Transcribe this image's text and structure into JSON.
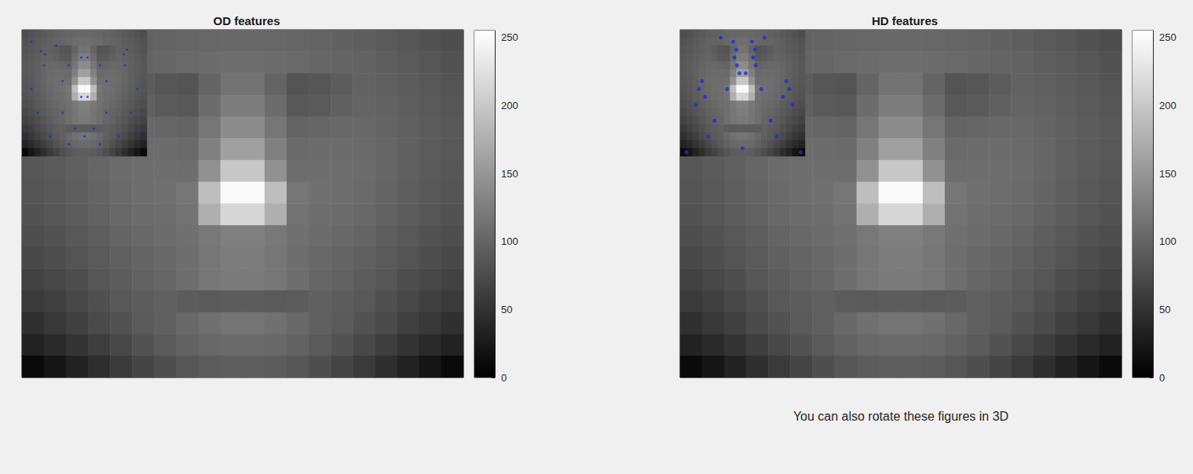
{
  "chart_data": [
    {
      "type": "heatmap",
      "title": "OD features",
      "tick_labels": false,
      "cells": [
        [
          78,
          82,
          86,
          90,
          94,
          97,
          99,
          101,
          103,
          104,
          104,
          103,
          101,
          99,
          97,
          94,
          90,
          86,
          82,
          78
        ],
        [
          82,
          86,
          90,
          94,
          98,
          100,
          102,
          105,
          108,
          110,
          110,
          108,
          105,
          102,
          100,
          98,
          94,
          90,
          86,
          82
        ],
        [
          84,
          88,
          92,
          96,
          98,
          92,
          86,
          84,
          100,
          115,
          115,
          100,
          84,
          86,
          92,
          98,
          96,
          92,
          88,
          84
        ],
        [
          86,
          90,
          94,
          98,
          100,
          96,
          90,
          88,
          108,
          125,
          125,
          108,
          88,
          90,
          96,
          100,
          98,
          94,
          90,
          86
        ],
        [
          88,
          92,
          96,
          100,
          104,
          104,
          102,
          100,
          118,
          140,
          140,
          118,
          100,
          102,
          104,
          104,
          100,
          96,
          92,
          88
        ],
        [
          88,
          92,
          96,
          102,
          106,
          108,
          108,
          106,
          128,
          160,
          160,
          128,
          106,
          108,
          108,
          106,
          102,
          96,
          92,
          88
        ],
        [
          86,
          90,
          96,
          102,
          108,
          110,
          110,
          110,
          145,
          200,
          200,
          145,
          110,
          110,
          110,
          108,
          102,
          96,
          90,
          86
        ],
        [
          84,
          88,
          94,
          100,
          106,
          110,
          112,
          118,
          190,
          250,
          250,
          190,
          118,
          112,
          110,
          106,
          100,
          94,
          88,
          84
        ],
        [
          82,
          86,
          92,
          98,
          104,
          108,
          110,
          115,
          175,
          215,
          215,
          175,
          115,
          110,
          108,
          104,
          98,
          92,
          86,
          82
        ],
        [
          78,
          82,
          88,
          94,
          100,
          104,
          108,
          112,
          120,
          128,
          128,
          120,
          112,
          108,
          104,
          100,
          94,
          88,
          82,
          78
        ],
        [
          72,
          78,
          84,
          90,
          96,
          100,
          104,
          110,
          118,
          125,
          125,
          118,
          110,
          104,
          100,
          96,
          90,
          84,
          78,
          72
        ],
        [
          66,
          72,
          78,
          86,
          92,
          98,
          102,
          110,
          118,
          122,
          122,
          118,
          110,
          102,
          98,
          92,
          86,
          78,
          72,
          66
        ],
        [
          58,
          64,
          72,
          80,
          88,
          92,
          96,
          92,
          90,
          92,
          92,
          90,
          92,
          96,
          92,
          88,
          80,
          72,
          64,
          58
        ],
        [
          48,
          56,
          64,
          74,
          82,
          90,
          96,
          104,
          112,
          116,
          116,
          112,
          104,
          96,
          90,
          82,
          74,
          64,
          56,
          48
        ],
        [
          34,
          42,
          52,
          62,
          72,
          82,
          90,
          98,
          104,
          106,
          106,
          104,
          98,
          90,
          82,
          72,
          62,
          52,
          42,
          34
        ],
        [
          10,
          22,
          34,
          46,
          58,
          68,
          78,
          86,
          92,
          94,
          94,
          92,
          86,
          78,
          68,
          58,
          46,
          34,
          22,
          10
        ]
      ],
      "colorbar": {
        "range": [
          0,
          255
        ],
        "ticks": [
          0,
          50,
          100,
          150,
          200,
          250
        ]
      },
      "features": {
        "color": "#1a2fd6",
        "marker": "circle",
        "points": [
          [
            2.5,
            2.2
          ],
          [
            3.2,
            2.6
          ],
          [
            16.3,
            2.0
          ],
          [
            15.8,
            2.6
          ],
          [
            1,
            1
          ],
          [
            5,
            1.5
          ],
          [
            7,
            4
          ],
          [
            12,
            4
          ],
          [
            9,
            8
          ],
          [
            10,
            8
          ],
          [
            6,
            10
          ],
          [
            13,
            10
          ],
          [
            8,
            12
          ],
          [
            11,
            12
          ],
          [
            4,
            13
          ],
          [
            15,
            13
          ],
          [
            1,
            7
          ],
          [
            18,
            7
          ],
          [
            2,
            10
          ],
          [
            17,
            10
          ],
          [
            9.5,
            13
          ],
          [
            6,
            6
          ],
          [
            13,
            6
          ],
          [
            3,
            4
          ],
          [
            16,
            4
          ],
          [
            7,
            14
          ],
          [
            12,
            14
          ],
          [
            0.5,
            12
          ],
          [
            19,
            12
          ],
          [
            9,
            3
          ],
          [
            10,
            3
          ]
        ]
      }
    },
    {
      "type": "heatmap",
      "title": "HD features",
      "tick_labels": false,
      "annotation": "You can also rotate these figures in 3D",
      "cells": [
        [
          78,
          82,
          86,
          90,
          94,
          97,
          99,
          101,
          103,
          104,
          104,
          103,
          101,
          99,
          97,
          94,
          90,
          86,
          82,
          78
        ],
        [
          82,
          86,
          90,
          94,
          98,
          100,
          102,
          105,
          108,
          110,
          110,
          108,
          105,
          102,
          100,
          98,
          94,
          90,
          86,
          82
        ],
        [
          84,
          88,
          92,
          96,
          98,
          92,
          86,
          84,
          100,
          115,
          115,
          100,
          84,
          86,
          92,
          98,
          96,
          92,
          88,
          84
        ],
        [
          86,
          90,
          94,
          98,
          100,
          96,
          90,
          88,
          108,
          125,
          125,
          108,
          88,
          90,
          96,
          100,
          98,
          94,
          90,
          86
        ],
        [
          88,
          92,
          96,
          100,
          104,
          104,
          102,
          100,
          118,
          140,
          140,
          118,
          100,
          102,
          104,
          104,
          100,
          96,
          92,
          88
        ],
        [
          88,
          92,
          96,
          102,
          106,
          108,
          108,
          106,
          128,
          160,
          160,
          128,
          106,
          108,
          108,
          106,
          102,
          96,
          92,
          88
        ],
        [
          86,
          90,
          96,
          102,
          108,
          110,
          110,
          110,
          145,
          200,
          200,
          145,
          110,
          110,
          110,
          108,
          102,
          96,
          90,
          86
        ],
        [
          84,
          88,
          94,
          100,
          106,
          110,
          112,
          118,
          190,
          250,
          250,
          190,
          118,
          112,
          110,
          106,
          100,
          94,
          88,
          84
        ],
        [
          82,
          86,
          92,
          98,
          104,
          108,
          110,
          115,
          175,
          215,
          215,
          175,
          115,
          110,
          108,
          104,
          98,
          92,
          86,
          82
        ],
        [
          78,
          82,
          88,
          94,
          100,
          104,
          108,
          112,
          120,
          128,
          128,
          120,
          112,
          108,
          104,
          100,
          94,
          88,
          82,
          78
        ],
        [
          72,
          78,
          84,
          90,
          96,
          100,
          104,
          110,
          118,
          125,
          125,
          118,
          110,
          104,
          100,
          96,
          90,
          84,
          78,
          72
        ],
        [
          66,
          72,
          78,
          86,
          92,
          98,
          102,
          110,
          118,
          122,
          122,
          118,
          110,
          102,
          98,
          92,
          86,
          78,
          72,
          66
        ],
        [
          58,
          64,
          72,
          80,
          88,
          92,
          96,
          92,
          90,
          92,
          92,
          90,
          92,
          96,
          92,
          88,
          80,
          72,
          64,
          58
        ],
        [
          48,
          56,
          64,
          74,
          82,
          90,
          96,
          104,
          112,
          116,
          116,
          112,
          104,
          96,
          90,
          82,
          74,
          64,
          56,
          48
        ],
        [
          34,
          42,
          52,
          62,
          72,
          82,
          90,
          98,
          104,
          106,
          106,
          104,
          98,
          90,
          82,
          72,
          62,
          52,
          42,
          34
        ],
        [
          10,
          22,
          34,
          46,
          58,
          68,
          78,
          86,
          92,
          94,
          94,
          92,
          86,
          78,
          68,
          58,
          46,
          34,
          22,
          10
        ]
      ],
      "colorbar": {
        "range": [
          0,
          255
        ],
        "ticks": [
          0,
          50,
          100,
          150,
          200,
          250
        ]
      },
      "features": {
        "color": "#1a2fd6",
        "marker": "circle",
        "points": [
          [
            8,
            1
          ],
          [
            8.5,
            2
          ],
          [
            8.2,
            3
          ],
          [
            8.6,
            4
          ],
          [
            11,
            1
          ],
          [
            11.5,
            2
          ],
          [
            11.2,
            3
          ],
          [
            11.6,
            4
          ],
          [
            9,
            5
          ],
          [
            10,
            5
          ],
          [
            7,
            7
          ],
          [
            12.5,
            7
          ],
          [
            3,
            6
          ],
          [
            2.5,
            7
          ],
          [
            3.5,
            8
          ],
          [
            2,
            9
          ],
          [
            16.5,
            6
          ],
          [
            17,
            7
          ],
          [
            16,
            8
          ],
          [
            17.5,
            9
          ],
          [
            5,
            11
          ],
          [
            14,
            11
          ],
          [
            0.5,
            15
          ],
          [
            18.8,
            15
          ],
          [
            6,
            0.5
          ],
          [
            13,
            0.5
          ],
          [
            9.5,
            14.5
          ],
          [
            4,
            13
          ],
          [
            15,
            13
          ]
        ]
      }
    }
  ]
}
